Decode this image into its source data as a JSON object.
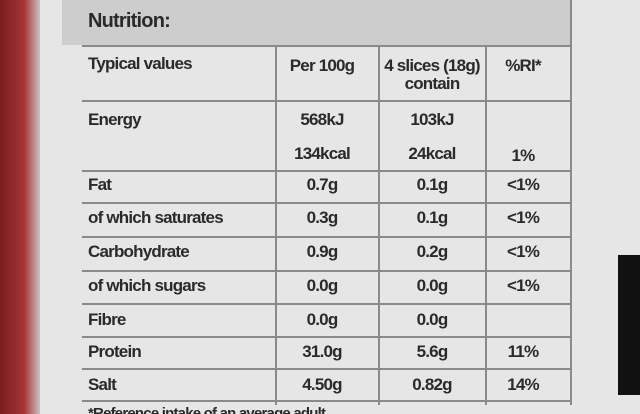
{
  "title": "Nutrition:",
  "header": {
    "label": "Typical values",
    "per100g": "Per 100g",
    "portion": [
      "4 slices (18g)",
      "contain"
    ],
    "ri": "%RI*"
  },
  "rows": [
    {
      "label": "Energy",
      "per100g": [
        "568kJ",
        "134kcal"
      ],
      "portion": [
        "103kJ",
        "24kcal"
      ],
      "ri": "1%"
    },
    {
      "label": "Fat",
      "per100g": "0.7g",
      "portion": "0.1g",
      "ri": "<1%"
    },
    {
      "label": "of which saturates",
      "per100g": "0.3g",
      "portion": "0.1g",
      "ri": "<1%"
    },
    {
      "label": "Carbohydrate",
      "per100g": "0.9g",
      "portion": "0.2g",
      "ri": "<1%"
    },
    {
      "label": "of which sugars",
      "per100g": "0.0g",
      "portion": "0.0g",
      "ri": "<1%"
    },
    {
      "label": "Fibre",
      "per100g": "0.0g",
      "portion": "0.0g"
    },
    {
      "label": "Protein",
      "per100g": "31.0g",
      "portion": "5.6g",
      "ri": "11%"
    },
    {
      "label": "Salt",
      "per100g": "4.50g",
      "portion": "0.82g",
      "ri": "14%"
    }
  ],
  "footnote": "*Reference intake of an average adult"
}
